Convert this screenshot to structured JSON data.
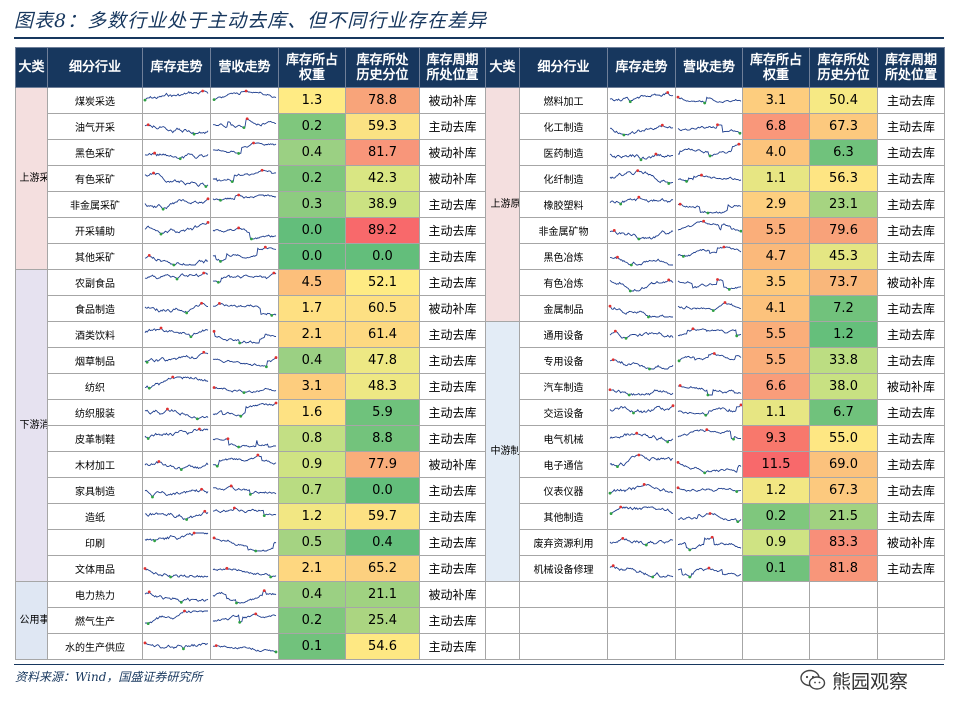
{
  "title": "图表8：多数行业处于主动去库、但不同行业存在差异",
  "headers": {
    "category": "大类",
    "industry": "细分行业",
    "inventory_trend": "库存走势",
    "revenue_trend": "营收走势",
    "weight_l1": "库存所占",
    "weight_l2": "权重",
    "pct_l1": "库存所处",
    "pct_l2": "历史分位",
    "cycle_l1": "库存周期",
    "cycle_l2": "所处位置"
  },
  "left": {
    "groups": [
      {
        "name": "上游采矿",
        "style": "a",
        "rows": [
          {
            "industry": "煤炭采选",
            "weight": "1.3",
            "pct": "78.8",
            "cycle": "被动补库",
            "wcolor": "#ffeb84",
            "pcolor": "#f8a47a"
          },
          {
            "industry": "油气开采",
            "weight": "0.2",
            "pct": "59.3",
            "cycle": "主动去库",
            "wcolor": "#7fc77d",
            "pcolor": "#fbe283"
          },
          {
            "industry": "黑色采矿",
            "weight": "0.4",
            "pct": "81.7",
            "cycle": "被动补库",
            "wcolor": "#9bd083",
            "pcolor": "#f8967a"
          },
          {
            "industry": "有色采矿",
            "weight": "0.2",
            "pct": "42.3",
            "cycle": "被动补库",
            "wcolor": "#7fc77d",
            "pcolor": "#d9e683"
          },
          {
            "industry": "非金属采矿",
            "weight": "0.3",
            "pct": "38.9",
            "cycle": "主动去库",
            "wcolor": "#8dcb80",
            "pcolor": "#cbe282"
          },
          {
            "industry": "开采辅助",
            "weight": "0.0",
            "pct": "89.2",
            "cycle": "主动去库",
            "wcolor": "#63be7b",
            "pcolor": "#f8696b"
          },
          {
            "industry": "其他采矿",
            "weight": "0.0",
            "pct": "0.0",
            "cycle": "主动去库",
            "wcolor": "#63be7b",
            "pcolor": "#63be7b"
          }
        ]
      },
      {
        "name": "下游消费",
        "style": "b",
        "rows": [
          {
            "industry": "农副食品",
            "weight": "4.5",
            "pct": "52.1",
            "cycle": "主动去库",
            "wcolor": "#fcbf7b",
            "pcolor": "#feeb84"
          },
          {
            "industry": "食品制造",
            "weight": "1.7",
            "pct": "60.5",
            "cycle": "被动补库",
            "wcolor": "#fee082",
            "pcolor": "#fde083"
          },
          {
            "industry": "酒类饮料",
            "weight": "2.1",
            "pct": "61.4",
            "cycle": "主动去库",
            "wcolor": "#fed780",
            "pcolor": "#fdd981"
          },
          {
            "industry": "烟草制品",
            "weight": "0.4",
            "pct": "47.8",
            "cycle": "主动去库",
            "wcolor": "#9bd083",
            "pcolor": "#ede884"
          },
          {
            "industry": "纺织",
            "weight": "3.1",
            "pct": "48.3",
            "cycle": "主动去库",
            "wcolor": "#fdcd7e",
            "pcolor": "#eee884"
          },
          {
            "industry": "纺织服装",
            "weight": "1.6",
            "pct": "5.9",
            "cycle": "主动去库",
            "wcolor": "#fee283",
            "pcolor": "#6fc27c"
          },
          {
            "industry": "皮革制鞋",
            "weight": "0.8",
            "pct": "8.8",
            "cycle": "主动去库",
            "wcolor": "#c3df84",
            "pcolor": "#73c37c"
          },
          {
            "industry": "木材加工",
            "weight": "0.9",
            "pct": "77.9",
            "cycle": "被动补库",
            "wcolor": "#cfe383",
            "pcolor": "#f9ad7a"
          },
          {
            "industry": "家具制造",
            "weight": "0.7",
            "pct": "0.0",
            "cycle": "主动去库",
            "wcolor": "#b9dc82",
            "pcolor": "#63be7b"
          },
          {
            "industry": "造纸",
            "weight": "1.2",
            "pct": "59.7",
            "cycle": "主动去库",
            "wcolor": "#f2e783",
            "pcolor": "#fde183"
          },
          {
            "industry": "印刷",
            "weight": "0.5",
            "pct": "0.4",
            "cycle": "主动去库",
            "wcolor": "#a5d382",
            "pcolor": "#63be7b"
          },
          {
            "industry": "文体用品",
            "weight": "2.1",
            "pct": "65.2",
            "cycle": "主动去库",
            "wcolor": "#fed780",
            "pcolor": "#fcd07f"
          }
        ]
      },
      {
        "name": "公用事业",
        "style": "c",
        "rows": [
          {
            "industry": "电力热力",
            "weight": "0.4",
            "pct": "21.1",
            "cycle": "被动补库",
            "wcolor": "#9bd083",
            "pcolor": "#a0d281"
          },
          {
            "industry": "燃气生产",
            "weight": "0.2",
            "pct": "25.4",
            "cycle": "主动去库",
            "wcolor": "#7fc77d",
            "pcolor": "#abd581"
          },
          {
            "industry": "水的生产供应",
            "weight": "0.1",
            "pct": "54.6",
            "cycle": "主动去库",
            "wcolor": "#71c27c",
            "pcolor": "#fee883"
          }
        ]
      }
    ]
  },
  "right": {
    "groups": [
      {
        "name": "上游原材料",
        "style": "a",
        "rows": [
          {
            "industry": "燃料加工",
            "weight": "3.1",
            "pct": "50.4",
            "cycle": "主动去库",
            "wcolor": "#fdcd7e",
            "pcolor": "#f6e984"
          },
          {
            "industry": "化工制造",
            "weight": "6.8",
            "pct": "67.3",
            "cycle": "主动去库",
            "wcolor": "#f9977a",
            "pcolor": "#fcc97e"
          },
          {
            "industry": "医药制造",
            "weight": "4.0",
            "pct": "6.3",
            "cycle": "主动去库",
            "wcolor": "#fcc47c",
            "pcolor": "#70c27c"
          },
          {
            "industry": "化纤制造",
            "weight": "1.1",
            "pct": "56.3",
            "cycle": "主动去库",
            "wcolor": "#e7e683",
            "pcolor": "#fee583"
          },
          {
            "industry": "橡胶塑料",
            "weight": "2.9",
            "pct": "23.1",
            "cycle": "主动去库",
            "wcolor": "#fdcf7f",
            "pcolor": "#a6d481"
          },
          {
            "industry": "非金属矿物",
            "weight": "5.5",
            "pct": "79.6",
            "cycle": "主动去库",
            "wcolor": "#faae7a",
            "pcolor": "#f8a27a"
          },
          {
            "industry": "黑色冶炼",
            "weight": "4.7",
            "pct": "45.3",
            "cycle": "主动去库",
            "wcolor": "#fbb97b",
            "pcolor": "#e4e683"
          }
        ]
      },
      {
        "name": "",
        "style": "a",
        "rows": [
          {
            "industry": "有色冶炼",
            "weight": "3.5",
            "pct": "73.7",
            "cycle": "被动补库",
            "wcolor": "#fdc97d",
            "pcolor": "#f9b77b"
          },
          {
            "industry": "金属制品",
            "weight": "4.1",
            "pct": "7.2",
            "cycle": "主动去库",
            "wcolor": "#fcc27c",
            "pcolor": "#71c27c"
          }
        ]
      },
      {
        "name": "中游制造",
        "style": "d",
        "rows": [
          {
            "industry": "通用设备",
            "weight": "5.5",
            "pct": "1.2",
            "cycle": "主动去库",
            "wcolor": "#faae7a",
            "pcolor": "#65bf7b"
          },
          {
            "industry": "专用设备",
            "weight": "5.5",
            "pct": "33.8",
            "cycle": "主动去库",
            "wcolor": "#faae7a",
            "pcolor": "#bcdd82"
          },
          {
            "industry": "汽车制造",
            "weight": "6.6",
            "pct": "38.0",
            "cycle": "被动补库",
            "wcolor": "#f99d7a",
            "pcolor": "#c8e182"
          },
          {
            "industry": "交运设备",
            "weight": "1.1",
            "pct": "6.7",
            "cycle": "主动去库",
            "wcolor": "#e7e683",
            "pcolor": "#70c27c"
          },
          {
            "industry": "电气机械",
            "weight": "9.3",
            "pct": "55.0",
            "cycle": "主动去库",
            "wcolor": "#f8786c",
            "pcolor": "#fee783"
          },
          {
            "industry": "电子通信",
            "weight": "11.5",
            "pct": "69.0",
            "cycle": "主动去库",
            "wcolor": "#f8696b",
            "pcolor": "#fbc27d"
          },
          {
            "industry": "仪表仪器",
            "weight": "1.2",
            "pct": "67.3",
            "cycle": "主动去库",
            "wcolor": "#f2e783",
            "pcolor": "#fcc97e"
          },
          {
            "industry": "其他制造",
            "weight": "0.2",
            "pct": "21.5",
            "cycle": "主动去库",
            "wcolor": "#7fc77d",
            "pcolor": "#a1d281"
          },
          {
            "industry": "废弃资源利用",
            "weight": "0.9",
            "pct": "83.3",
            "cycle": "被动补库",
            "wcolor": "#cfe383",
            "pcolor": "#f88f79"
          },
          {
            "industry": "机械设备修理",
            "weight": "0.1",
            "pct": "81.8",
            "cycle": "主动去库",
            "wcolor": "#71c27c",
            "pcolor": "#f8967a"
          }
        ]
      }
    ]
  },
  "footer": "资料来源：Wind，国盛证券研究所",
  "watermark": "熊园观察"
}
